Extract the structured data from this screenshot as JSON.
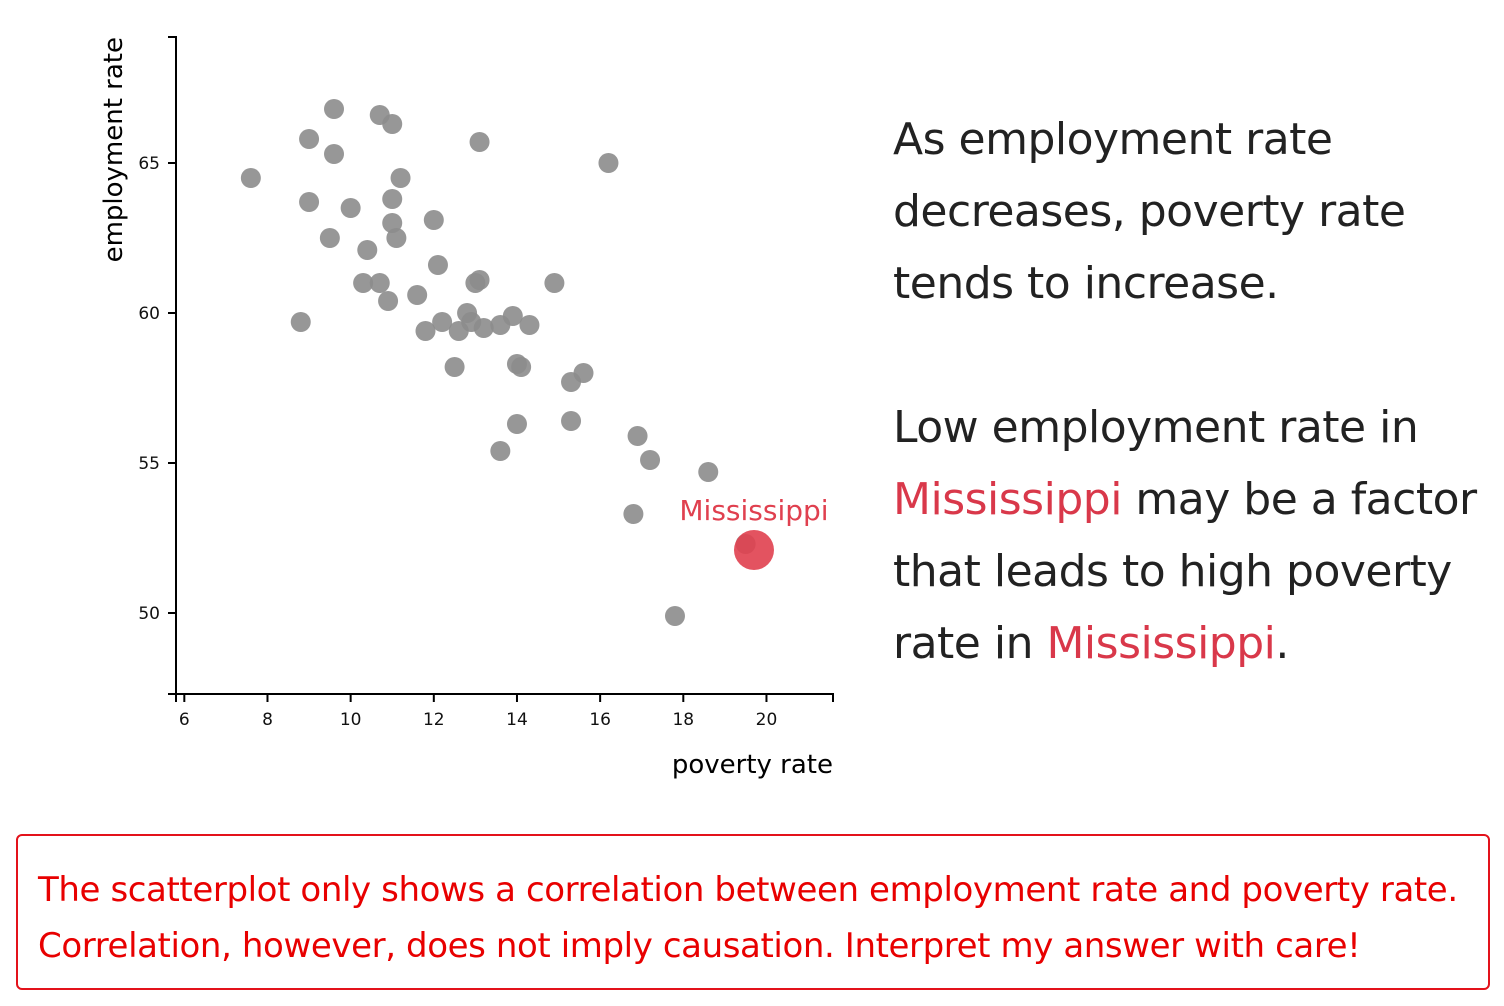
{
  "chart_data": {
    "type": "scatter",
    "xlabel": "poverty rate",
    "ylabel": "employment rate",
    "xlim": [
      5.8,
      21.6
    ],
    "ylim": [
      47.3,
      69.2
    ],
    "xticks": [
      6,
      8,
      10,
      12,
      14,
      16,
      18,
      20
    ],
    "yticks": [
      50,
      55,
      60,
      65
    ],
    "point_color": "#8c8c8c",
    "highlight_color": "#e0404f",
    "points": [
      {
        "x": 7.6,
        "y": 64.5
      },
      {
        "x": 8.8,
        "y": 59.7
      },
      {
        "x": 9.0,
        "y": 65.8
      },
      {
        "x": 9.0,
        "y": 63.7
      },
      {
        "x": 9.5,
        "y": 62.5
      },
      {
        "x": 9.6,
        "y": 66.8
      },
      {
        "x": 9.6,
        "y": 65.3
      },
      {
        "x": 10.0,
        "y": 63.5
      },
      {
        "x": 10.3,
        "y": 61.0
      },
      {
        "x": 10.4,
        "y": 62.1
      },
      {
        "x": 10.7,
        "y": 66.6
      },
      {
        "x": 10.7,
        "y": 61.0
      },
      {
        "x": 10.9,
        "y": 60.4
      },
      {
        "x": 11.0,
        "y": 66.3
      },
      {
        "x": 11.0,
        "y": 63.8
      },
      {
        "x": 11.0,
        "y": 63.0
      },
      {
        "x": 11.1,
        "y": 62.5
      },
      {
        "x": 11.2,
        "y": 64.5
      },
      {
        "x": 11.6,
        "y": 60.6
      },
      {
        "x": 11.8,
        "y": 59.4
      },
      {
        "x": 12.0,
        "y": 63.1
      },
      {
        "x": 12.1,
        "y": 61.6
      },
      {
        "x": 12.2,
        "y": 59.7
      },
      {
        "x": 12.5,
        "y": 58.2
      },
      {
        "x": 12.6,
        "y": 59.4
      },
      {
        "x": 12.8,
        "y": 60.0
      },
      {
        "x": 12.9,
        "y": 59.7
      },
      {
        "x": 13.0,
        "y": 61.0
      },
      {
        "x": 13.1,
        "y": 61.1
      },
      {
        "x": 13.1,
        "y": 65.7
      },
      {
        "x": 13.2,
        "y": 59.5
      },
      {
        "x": 13.6,
        "y": 59.6
      },
      {
        "x": 13.6,
        "y": 55.4
      },
      {
        "x": 13.9,
        "y": 59.9
      },
      {
        "x": 14.0,
        "y": 58.3
      },
      {
        "x": 14.0,
        "y": 56.3
      },
      {
        "x": 14.1,
        "y": 58.2
      },
      {
        "x": 14.3,
        "y": 59.6
      },
      {
        "x": 14.9,
        "y": 61.0
      },
      {
        "x": 15.3,
        "y": 57.7
      },
      {
        "x": 15.3,
        "y": 56.4
      },
      {
        "x": 15.6,
        "y": 58.0
      },
      {
        "x": 16.2,
        "y": 65.0
      },
      {
        "x": 16.8,
        "y": 53.3
      },
      {
        "x": 16.9,
        "y": 55.9
      },
      {
        "x": 17.2,
        "y": 55.1
      },
      {
        "x": 17.8,
        "y": 49.9
      },
      {
        "x": 18.6,
        "y": 54.7
      },
      {
        "x": 19.5,
        "y": 52.3
      }
    ],
    "highlight": {
      "label": "Mississippi",
      "x": 19.7,
      "y": 52.1
    }
  },
  "explanation": {
    "line1": "As employment rate decreases, poverty rate tends to increase.",
    "part1": "Low employment rate in ",
    "state1": "Mississippi",
    "part2": " may be a factor that leads to high poverty rate in ",
    "state2": "Mississippi",
    "part3": "."
  },
  "disclaimer": {
    "line1": "The scatterplot only shows a correlation between employment rate and poverty rate.",
    "line2": "Correlation, however, does not imply causation. Interpret my answer with care!"
  }
}
